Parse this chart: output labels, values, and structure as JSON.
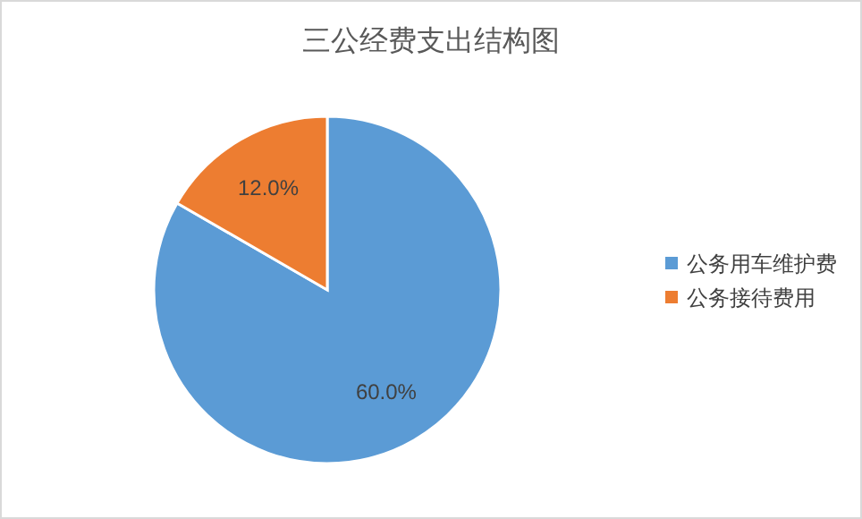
{
  "chart_data": {
    "type": "pie",
    "title": "三公经费支出结构图",
    "categories": [
      "公务用车维护费",
      "公务接待费用"
    ],
    "values": [
      60,
      12
    ],
    "colors": [
      "#5b9bd5",
      "#ed7d31"
    ],
    "value_labels": [
      "60.0%",
      "12.0%"
    ],
    "legend": "right"
  }
}
